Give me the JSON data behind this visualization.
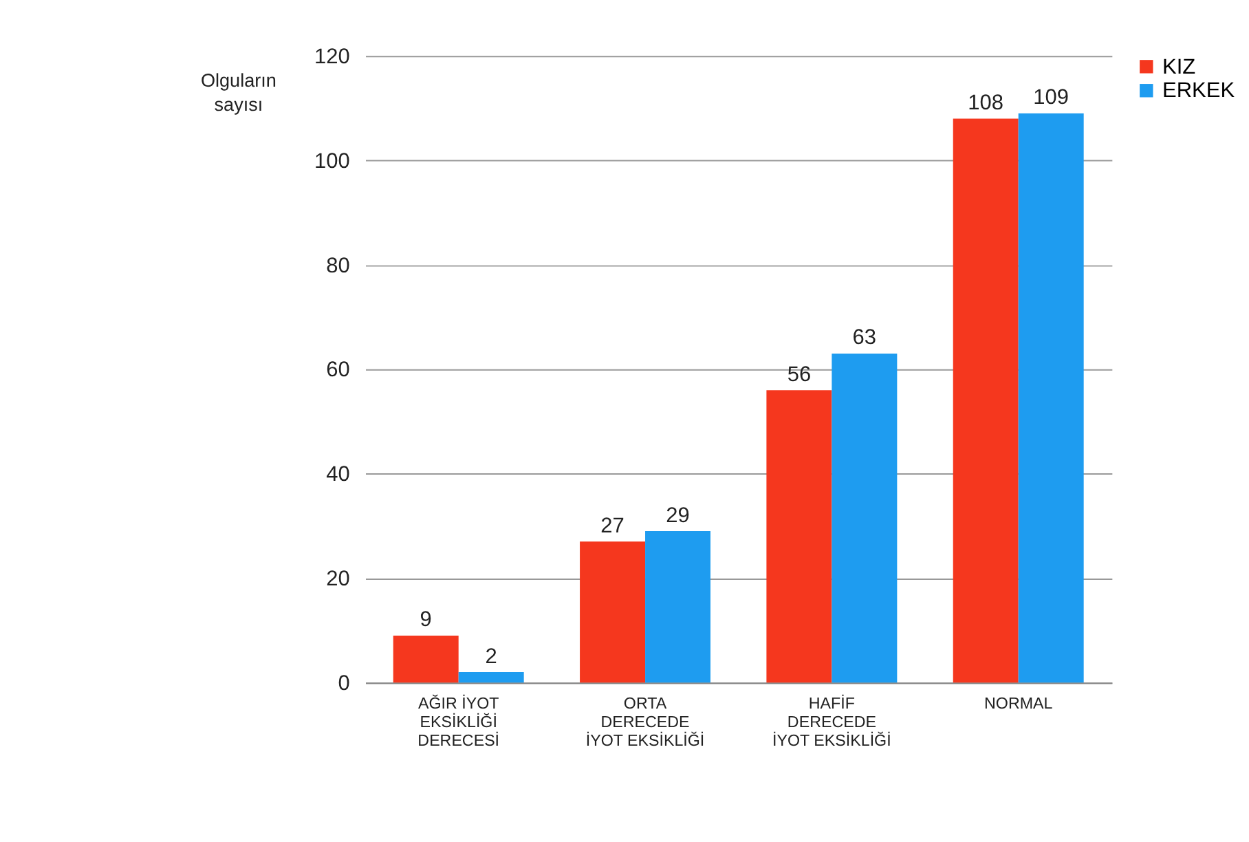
{
  "chart_data": {
    "type": "bar",
    "ylabel": "Olguların sayısı",
    "categories": [
      "AĞIR İYOT\nEKSİKLİĞİ\nDERECESİ",
      "ORTA\nDERECEDE\nİYOT EKSİKLİĞİ",
      "HAFİF\nDERECEDE\nİYOT EKSİKLİĞİ",
      "NORMAL"
    ],
    "series": [
      {
        "name": "KIZ",
        "color": "#f5371e",
        "values": [
          9,
          27,
          56,
          108
        ]
      },
      {
        "name": "ERKEK",
        "color": "#1e9cf0",
        "values": [
          2,
          29,
          63,
          109
        ]
      }
    ],
    "ylim": [
      0,
      120
    ],
    "yticks": [
      0,
      20,
      40,
      60,
      80,
      100,
      120
    ],
    "grid": "y",
    "legend": "right",
    "data_labels": true
  }
}
